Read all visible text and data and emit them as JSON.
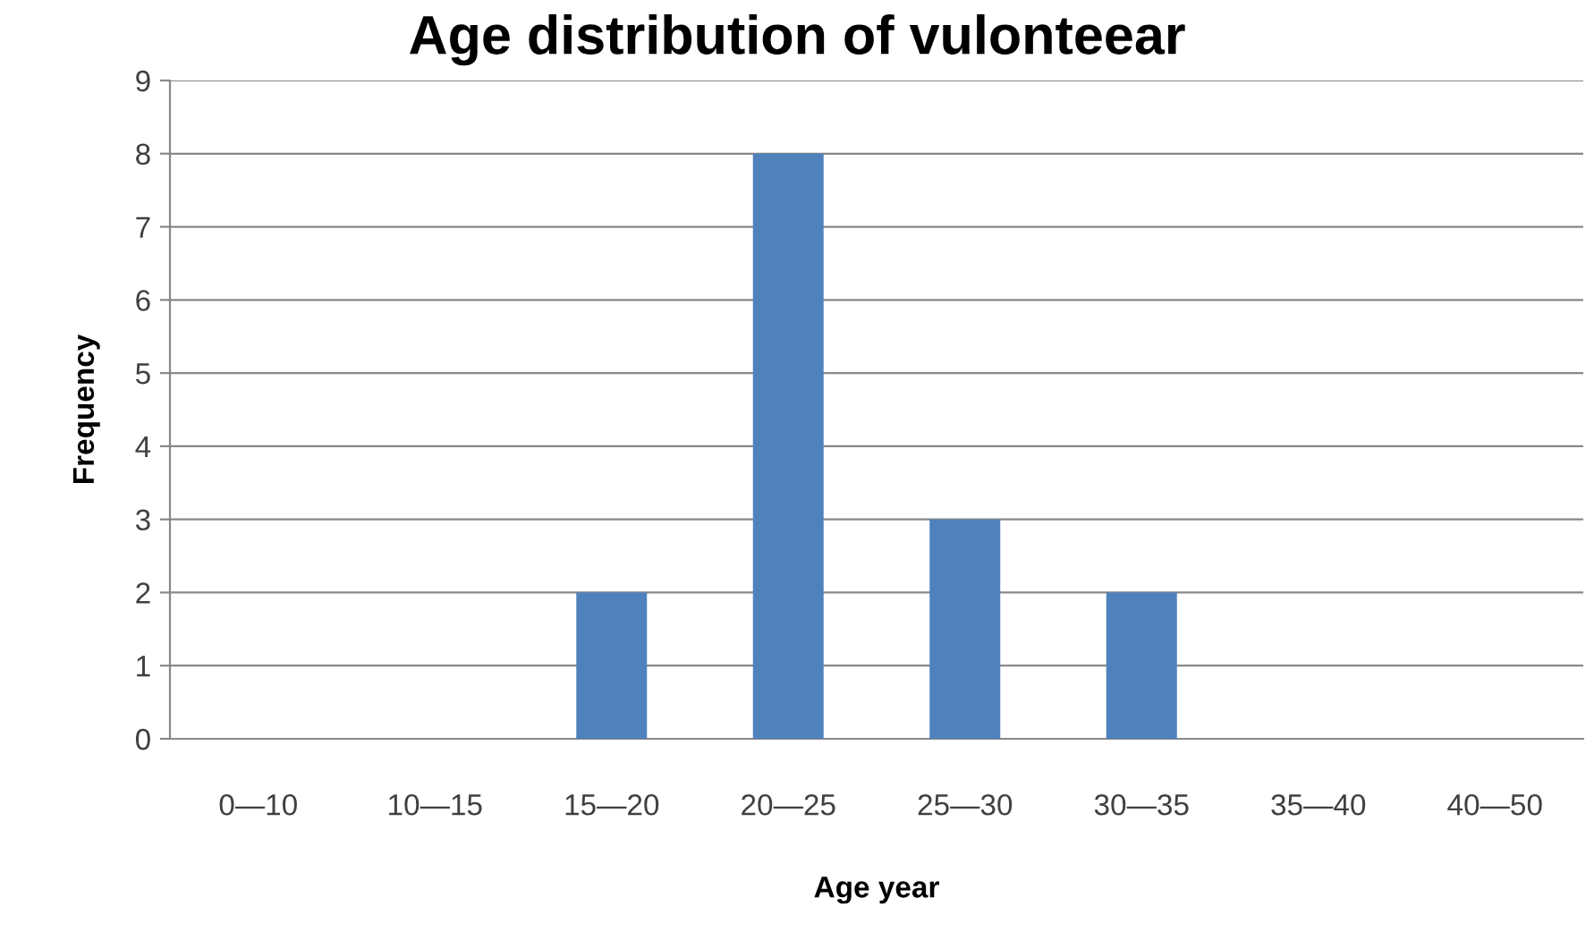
{
  "chart_data": {
    "type": "bar",
    "title": "Age distribution of vulonteear",
    "xlabel": "Age year",
    "ylabel": "Frequency",
    "categories": [
      "0—10",
      "10—15",
      "15—20",
      "20—25",
      "25—30",
      "30—35",
      "35—40",
      "40—50"
    ],
    "values": [
      0,
      0,
      2,
      8,
      3,
      2,
      0,
      0
    ],
    "color": "#4f81bd",
    "ylim": [
      0,
      9
    ],
    "yticks": [
      0,
      1,
      2,
      3,
      4,
      5,
      6,
      7,
      8,
      9
    ],
    "grid": "y"
  }
}
